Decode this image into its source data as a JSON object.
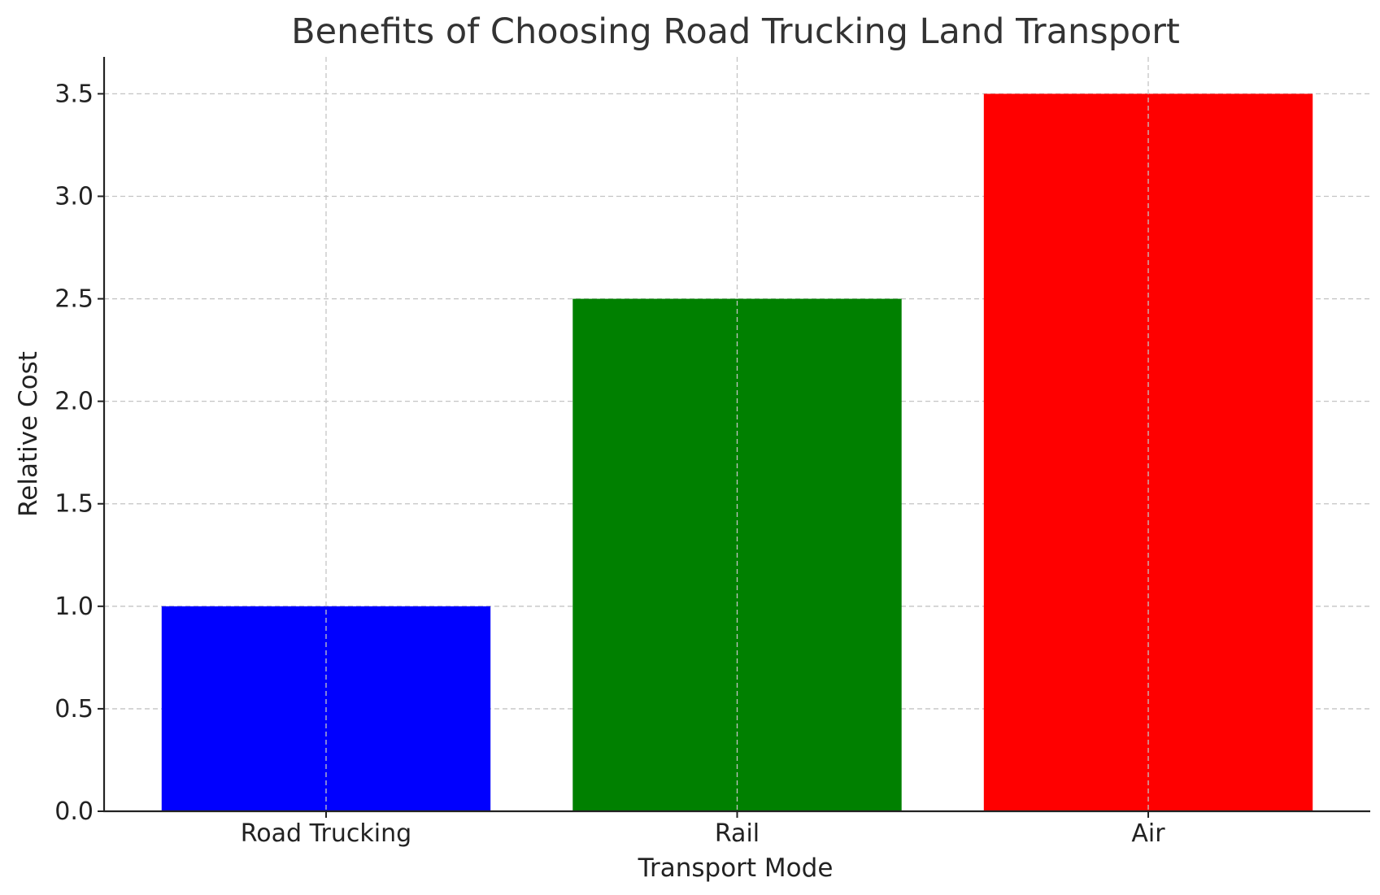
{
  "chart_data": {
    "type": "bar",
    "title": "Benefits of Choosing Road Trucking Land Transport",
    "xlabel": "Transport Mode",
    "ylabel": "Relative Cost",
    "categories": [
      "Road Trucking",
      "Rail",
      "Air"
    ],
    "values": [
      1.0,
      2.5,
      3.5
    ],
    "colors": [
      "#0000ff",
      "#008000",
      "#ff0000"
    ],
    "ylim": [
      0,
      3.68
    ],
    "yticks": [
      0.0,
      0.5,
      1.0,
      1.5,
      2.0,
      2.5,
      3.0,
      3.5
    ],
    "ytick_labels": [
      "0.0",
      "0.5",
      "1.0",
      "1.5",
      "2.0",
      "2.5",
      "3.0",
      "3.5"
    ],
    "grid": true,
    "legend": "none"
  }
}
